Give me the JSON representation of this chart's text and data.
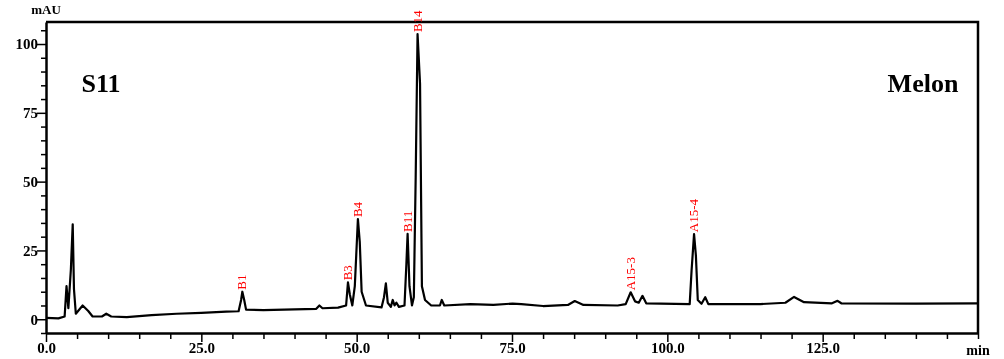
{
  "chart_data": {
    "type": "line",
    "xlabel": "min",
    "ylabel": "mAU",
    "xlim": [
      0,
      150
    ],
    "ylim": [
      -5,
      108
    ],
    "xticks": [
      {
        "value": 0,
        "label": "0.0"
      },
      {
        "value": 5,
        "label": null
      },
      {
        "value": 10,
        "label": null
      },
      {
        "value": 15,
        "label": null
      },
      {
        "value": 20,
        "label": null
      },
      {
        "value": 25,
        "label": "25.0"
      },
      {
        "value": 30,
        "label": null
      },
      {
        "value": 35,
        "label": null
      },
      {
        "value": 40,
        "label": null
      },
      {
        "value": 45,
        "label": null
      },
      {
        "value": 50,
        "label": "50.0"
      },
      {
        "value": 55,
        "label": null
      },
      {
        "value": 60,
        "label": null
      },
      {
        "value": 65,
        "label": null
      },
      {
        "value": 70,
        "label": null
      },
      {
        "value": 75,
        "label": "75.0"
      },
      {
        "value": 80,
        "label": null
      },
      {
        "value": 85,
        "label": null
      },
      {
        "value": 90,
        "label": null
      },
      {
        "value": 95,
        "label": null
      },
      {
        "value": 100,
        "label": "100.0"
      },
      {
        "value": 105,
        "label": null
      },
      {
        "value": 110,
        "label": null
      },
      {
        "value": 115,
        "label": null
      },
      {
        "value": 120,
        "label": null
      },
      {
        "value": 125,
        "label": "125.0"
      },
      {
        "value": 130,
        "label": null
      },
      {
        "value": 135,
        "label": null
      },
      {
        "value": 140,
        "label": null
      },
      {
        "value": 145,
        "label": null
      },
      {
        "value": 150,
        "label": null
      }
    ],
    "yticks": [
      {
        "value": -5,
        "label": null
      },
      0,
      {
        "value": 5,
        "label": null
      },
      {
        "value": 10,
        "label": null
      },
      {
        "value": 15,
        "label": null
      },
      {
        "value": 20,
        "label": null
      },
      25,
      {
        "value": 30,
        "label": null
      },
      {
        "value": 35,
        "label": null
      },
      {
        "value": 40,
        "label": null
      },
      {
        "value": 45,
        "label": null
      },
      50,
      {
        "value": 55,
        "label": null
      },
      {
        "value": 60,
        "label": null
      },
      {
        "value": 65,
        "label": null
      },
      {
        "value": 70,
        "label": null
      },
      75,
      {
        "value": 80,
        "label": null
      },
      {
        "value": 85,
        "label": null
      },
      {
        "value": 90,
        "label": null
      },
      {
        "value": 95,
        "label": null
      },
      100,
      {
        "value": 105,
        "label": null
      }
    ],
    "grid": false,
    "marker": "none",
    "line_style": "solid",
    "series": [
      {
        "color": "#000000",
        "x": [
          0,
          2,
          3.0,
          3.3,
          3.6,
          4.0,
          4.3,
          4.5,
          4.8,
          5.9,
          6.8,
          7.5,
          9.0,
          9.7,
          10.5,
          13,
          17,
          21,
          25,
          29,
          31,
          31.4,
          31.6,
          31.9,
          32.2,
          35,
          40,
          43.5,
          44,
          44.5,
          47,
          48.3,
          48.6,
          48.9,
          49.3,
          49.7,
          50.2,
          50.5,
          50.8,
          51.5,
          54,
          54.4,
          54.7,
          55.0,
          55.5,
          55.8,
          56.1,
          56.4,
          56.8,
          57.7,
          58.0,
          58.2,
          58.5,
          58.9,
          59.2,
          59.5,
          59.8,
          60.2,
          60.5,
          61,
          61.5,
          62,
          63.4,
          63.7,
          64.1,
          68.3,
          72,
          75.1,
          76.5,
          80,
          84,
          85.1,
          86.5,
          92,
          93.3,
          94.1,
          94.8,
          95.4,
          96.0,
          96.6,
          103.6,
          103.9,
          104.3,
          104.6,
          104.9,
          105.5,
          106.1,
          106.6,
          115,
          119,
          120.4,
          122,
          126.5,
          127.4,
          128,
          140,
          150
        ],
        "values": [
          0.5,
          0.3,
          1,
          12,
          4,
          18,
          34.5,
          11,
          2,
          5,
          3,
          1,
          1,
          2,
          1,
          0.8,
          1.5,
          2,
          2.3,
          2.8,
          2.9,
          7,
          10,
          7,
          3.5,
          3.3,
          3.6,
          3.8,
          5,
          4,
          4.2,
          5,
          13.4,
          9,
          5,
          12,
          36.4,
          28,
          10,
          5,
          4.3,
          8,
          13,
          6,
          4.5,
          7,
          5,
          6,
          4.5,
          5,
          20,
          31,
          12,
          5,
          8,
          51.6,
          103.6,
          85.5,
          12,
          7,
          6,
          5,
          5,
          7,
          5,
          5.5,
          5.2,
          5.7,
          5.5,
          4.8,
          5.2,
          6.6,
          5.2,
          5,
          5.5,
          9.8,
          6.5,
          6,
          8.5,
          5.8,
          5.5,
          17.6,
          30.9,
          23,
          7,
          5.6,
          8,
          5.5,
          5.5,
          6,
          8.1,
          6.2,
          5.8,
          6.7,
          5.8,
          5.7,
          5.8
        ]
      }
    ],
    "annotations": [
      "S11",
      "Melon",
      {
        "text": "B1",
        "x": 31.6,
        "y": 10
      },
      {
        "text": "B3",
        "x": 48.6,
        "y": 13.4
      },
      {
        "text": "B4",
        "x": 50.2,
        "y": 36.4
      },
      {
        "text": "B11",
        "x": 58.2,
        "y": 31
      },
      {
        "text": "B14",
        "x": 59.8,
        "y": 103.6
      },
      {
        "text": "A15-3",
        "x": 94.1,
        "y": 9.8
      },
      {
        "text": "A15-4",
        "x": 104.3,
        "y": 30.9
      }
    ]
  }
}
